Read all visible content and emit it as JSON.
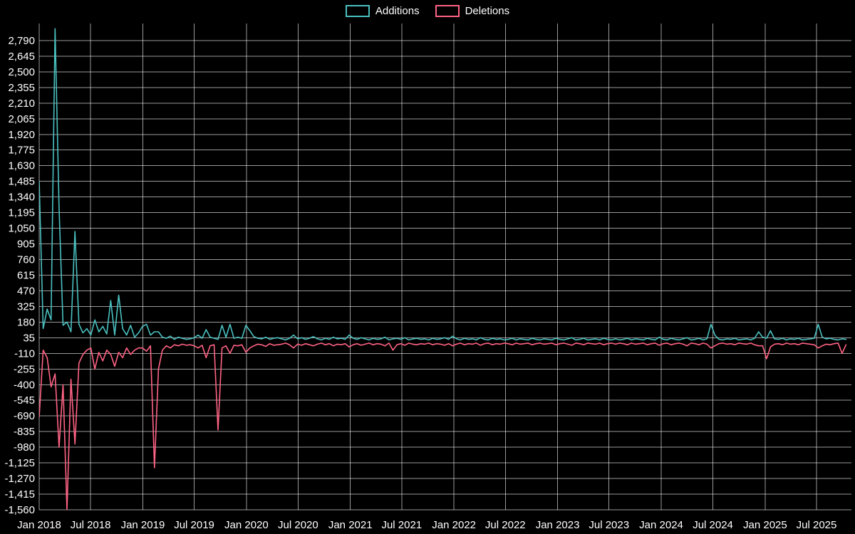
{
  "chart_data": {
    "type": "line",
    "title": "",
    "legend_position": "top",
    "background_color": "#000000",
    "grid": true,
    "grid_color": "rgba(255,255,255,0.6)",
    "text_color": "#ffffff",
    "x_start_date": "2018-01-01",
    "x_interval_days": 14,
    "x_tick_labels": [
      "Jan 2018",
      "Jul 2018",
      "Jan 2019",
      "Jul 2019",
      "Jan 2020",
      "Jul 2020",
      "Jan 2021",
      "Jul 2021",
      "Jan 2022",
      "Jul 2022",
      "Jan 2023",
      "Jul 2023",
      "Jan 2024",
      "Jul 2024",
      "Jan 2025",
      "Jul 2025"
    ],
    "x_tick_dates": [
      "2018-01-01",
      "2018-07-01",
      "2019-01-01",
      "2019-07-01",
      "2020-01-01",
      "2020-07-01",
      "2021-01-01",
      "2021-07-01",
      "2022-01-01",
      "2022-07-01",
      "2023-01-01",
      "2023-07-01",
      "2024-01-01",
      "2024-07-01",
      "2025-01-01",
      "2025-07-01"
    ],
    "y_ticks": [
      2790,
      2645,
      2500,
      2355,
      2210,
      2065,
      1920,
      1775,
      1630,
      1485,
      1340,
      1195,
      1050,
      905,
      760,
      615,
      470,
      325,
      180,
      35,
      -110,
      -255,
      -400,
      -545,
      -690,
      -835,
      -980,
      -1125,
      -1270,
      -1415,
      -1560
    ],
    "ylim": [
      -1560,
      2948
    ],
    "series": [
      {
        "name": "Additions",
        "color": "#4bc0c0",
        "values": [
          1485,
          120,
          300,
          200,
          2900,
          1240,
          150,
          180,
          90,
          1020,
          160,
          80,
          120,
          60,
          200,
          90,
          140,
          70,
          380,
          60,
          430,
          120,
          60,
          150,
          40,
          80,
          140,
          160,
          60,
          90,
          90,
          40,
          30,
          50,
          20,
          40,
          30,
          20,
          25,
          35,
          60,
          30,
          110,
          40,
          30,
          20,
          150,
          40,
          160,
          30,
          40,
          30,
          150,
          100,
          45,
          30,
          25,
          40,
          20,
          30,
          35,
          25,
          15,
          30,
          60,
          25,
          35,
          20,
          30,
          45,
          25,
          15,
          30,
          20,
          40,
          25,
          30,
          20,
          60,
          30,
          20,
          35,
          25,
          15,
          30,
          20,
          25,
          40,
          15,
          25,
          30,
          20,
          35,
          15,
          25,
          30,
          20,
          25,
          15,
          30,
          20,
          25,
          35,
          20,
          50,
          25,
          15,
          30,
          20,
          25,
          15,
          35,
          20,
          15,
          30,
          20,
          25,
          15,
          20,
          30,
          15,
          25,
          20,
          15,
          30,
          20,
          15,
          25,
          20,
          15,
          30,
          20,
          15,
          25,
          35,
          15,
          20,
          30,
          15,
          20,
          25,
          15,
          30,
          20,
          15,
          25,
          15,
          20,
          30,
          15,
          25,
          20,
          15,
          30,
          20,
          15,
          40,
          20,
          15,
          30,
          20,
          15,
          25,
          35,
          15,
          20,
          30,
          15,
          25,
          160,
          60,
          20,
          15,
          25,
          20,
          30,
          15,
          20,
          25,
          15,
          30,
          90,
          40,
          30,
          100,
          25,
          20,
          30,
          15,
          25,
          20,
          30,
          15,
          20,
          25,
          30,
          160,
          40,
          25,
          30,
          20,
          15,
          25,
          20
        ]
      },
      {
        "name": "Deletions",
        "color": "#ff6384",
        "values": [
          -700,
          -80,
          -150,
          -420,
          -300,
          -980,
          -400,
          -1560,
          -350,
          -950,
          -200,
          -120,
          -80,
          -60,
          -255,
          -100,
          -180,
          -80,
          -120,
          -230,
          -100,
          -150,
          -60,
          -120,
          -80,
          -60,
          -60,
          -90,
          -40,
          -1170,
          -255,
          -80,
          -40,
          -60,
          -30,
          -40,
          -25,
          -35,
          -30,
          -40,
          -60,
          -35,
          -150,
          -40,
          -30,
          -820,
          -60,
          -40,
          -110,
          -35,
          -40,
          -30,
          -100,
          -60,
          -40,
          -25,
          -30,
          -45,
          -20,
          -35,
          -30,
          -25,
          -15,
          -30,
          -60,
          -25,
          -35,
          -20,
          -30,
          -40,
          -25,
          -15,
          -30,
          -20,
          -40,
          -25,
          -30,
          -20,
          -50,
          -30,
          -20,
          -35,
          -25,
          -15,
          -30,
          -20,
          -25,
          -40,
          -15,
          -80,
          -30,
          -20,
          -35,
          -15,
          -25,
          -30,
          -20,
          -25,
          -15,
          -30,
          -20,
          -25,
          -35,
          -20,
          -40,
          -25,
          -15,
          -30,
          -20,
          -25,
          -15,
          -35,
          -20,
          -15,
          -30,
          -20,
          -25,
          -15,
          -20,
          -30,
          -15,
          -25,
          -20,
          -15,
          -30,
          -20,
          -15,
          -25,
          -20,
          -15,
          -30,
          -20,
          -15,
          -25,
          -35,
          -15,
          -20,
          -30,
          -15,
          -20,
          -25,
          -15,
          -30,
          -20,
          -15,
          -25,
          -15,
          -20,
          -30,
          -15,
          -25,
          -20,
          -15,
          -30,
          -20,
          -15,
          -35,
          -20,
          -15,
          -30,
          -20,
          -15,
          -25,
          -40,
          -15,
          -20,
          -30,
          -15,
          -25,
          -60,
          -40,
          -20,
          -15,
          -25,
          -20,
          -30,
          -15,
          -20,
          -25,
          -15,
          -30,
          -40,
          -40,
          -160,
          -50,
          -25,
          -20,
          -30,
          -15,
          -25,
          -20,
          -30,
          -15,
          -20,
          -25,
          -30,
          -60,
          -40,
          -25,
          -30,
          -20,
          -15,
          -110,
          -30
        ]
      }
    ]
  }
}
